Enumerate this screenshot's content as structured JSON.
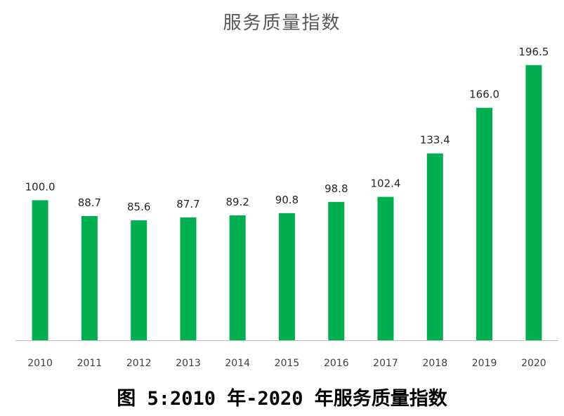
{
  "chart_data": {
    "type": "bar",
    "title": "服务质量指数",
    "categories": [
      "2010",
      "2011",
      "2012",
      "2013",
      "2014",
      "2015",
      "2016",
      "2017",
      "2018",
      "2019",
      "2020"
    ],
    "values": [
      100.0,
      88.7,
      85.6,
      87.7,
      89.2,
      90.8,
      98.8,
      102.4,
      133.4,
      166.0,
      196.5
    ],
    "data_labels": [
      "100.0",
      "88.7",
      "85.6",
      "87.7",
      "89.2",
      "90.8",
      "98.8",
      "102.4",
      "133.4",
      "166.0",
      "196.5"
    ],
    "xlabel": "",
    "ylabel": "",
    "ylim": [
      0,
      200
    ],
    "grid": false,
    "bar_color": "#00B050",
    "axis_color": "#BFBFBF"
  },
  "caption": "图 5:2010 年-2020 年服务质量指数"
}
